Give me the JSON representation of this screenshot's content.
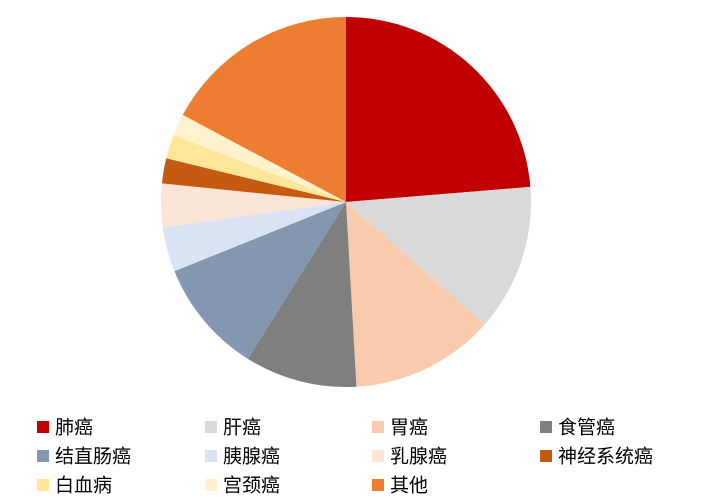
{
  "chart_data": {
    "type": "pie",
    "categories": [
      "肺癌",
      "肝癌",
      "胃癌",
      "食管癌",
      "结直肠癌",
      "胰腺癌",
      "乳腺癌",
      "神经系统癌",
      "白血病",
      "宫颈癌",
      "其他"
    ],
    "values": [
      23.7,
      12.8,
      12.6,
      9.8,
      10,
      3.9,
      3.8,
      2.2,
      2.1,
      1.9,
      17.2
    ],
    "colors": [
      "#c00000",
      "#d9d9d9",
      "#f8cbad",
      "#7f7f7f",
      "#8497b0",
      "#dae3f3",
      "#fbe5d6",
      "#c55a11",
      "#ffe699",
      "#fff2cc",
      "#ed7d31"
    ],
    "legend": "bottom"
  }
}
